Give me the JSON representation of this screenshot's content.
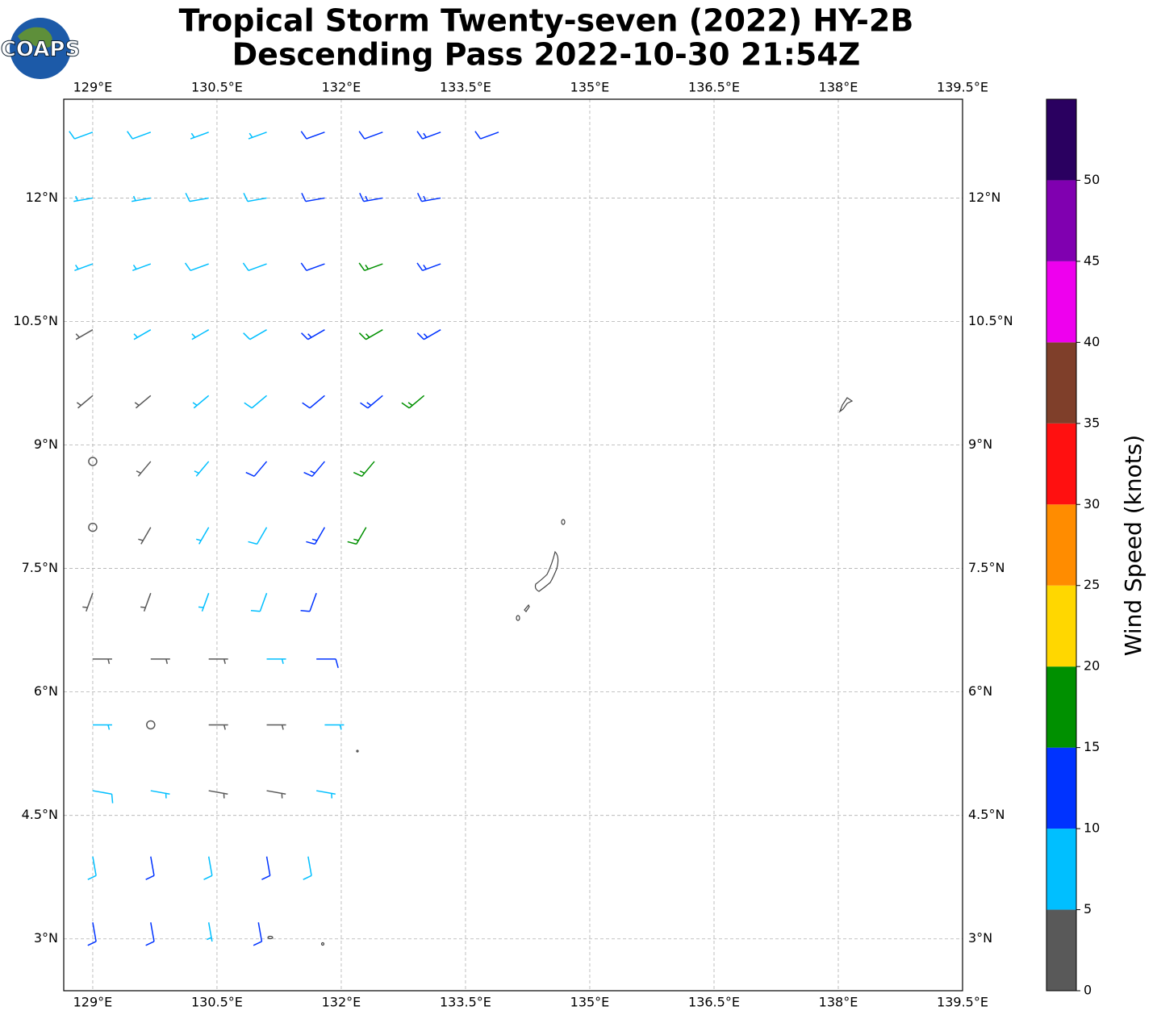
{
  "chart_data": {
    "type": "wind-barbs",
    "logo": "COAPS",
    "title": [
      "Tropical Storm Twenty-seven (2022) HY-2B",
      "Descending Pass 2022-10-30 21:54Z"
    ],
    "xlim": [
      128.65,
      139.5
    ],
    "ylim": [
      2.37,
      13.2
    ],
    "xticks": [
      {
        "value": 129,
        "label": "129°E"
      },
      {
        "value": 130.5,
        "label": "130.5°E"
      },
      {
        "value": 132,
        "label": "132°E"
      },
      {
        "value": 133.5,
        "label": "133.5°E"
      },
      {
        "value": 135,
        "label": "135°E"
      },
      {
        "value": 136.5,
        "label": "136.5°E"
      },
      {
        "value": 138,
        "label": "138°E"
      },
      {
        "value": 139.5,
        "label": "139.5°E"
      }
    ],
    "yticks": [
      {
        "value": 3,
        "label": "3°N"
      },
      {
        "value": 4.5,
        "label": "4.5°N"
      },
      {
        "value": 6,
        "label": "6°N"
      },
      {
        "value": 7.5,
        "label": "7.5°N"
      },
      {
        "value": 9,
        "label": "9°N"
      },
      {
        "value": 10.5,
        "label": "10.5°N"
      },
      {
        "value": 12,
        "label": "12°N"
      }
    ],
    "grid": true,
    "barbs": {
      "lon": [
        129,
        129.7,
        130.4,
        131.1,
        131.8,
        132.5,
        133.2,
        133.9,
        129,
        129.7,
        130.4,
        131.1,
        131.8,
        132.5,
        133.2,
        129,
        129.7,
        130.4,
        131.1,
        131.8,
        132.5,
        133.2,
        129,
        129.7,
        130.4,
        131.1,
        131.8,
        132.5,
        133.2,
        129,
        129.7,
        130.4,
        131.1,
        131.8,
        132.5,
        133,
        129,
        129.7,
        130.4,
        131.1,
        131.8,
        132.4,
        129,
        129.7,
        130.4,
        131.1,
        131.8,
        132.3,
        129,
        129.7,
        130.4,
        131.1,
        131.7,
        129,
        129.7,
        130.4,
        131.1,
        131.7,
        129,
        129.7,
        130.4,
        131.1,
        131.8,
        129,
        129.7,
        130.4,
        131.1,
        131.7,
        129,
        129.7,
        130.4,
        131.1,
        131.6,
        129,
        129.7,
        130.4,
        131
      ],
      "lat": [
        12.8,
        12.8,
        12.8,
        12.8,
        12.8,
        12.8,
        12.8,
        12.8,
        12,
        12,
        12,
        12,
        12,
        12,
        12,
        11.2,
        11.2,
        11.2,
        11.2,
        11.2,
        11.2,
        11.2,
        10.4,
        10.4,
        10.4,
        10.4,
        10.4,
        10.4,
        10.4,
        9.6,
        9.6,
        9.6,
        9.6,
        9.6,
        9.6,
        9.6,
        8.8,
        8.8,
        8.8,
        8.8,
        8.8,
        8.8,
        8,
        8,
        8,
        8,
        8,
        8,
        7.2,
        7.2,
        7.2,
        7.2,
        7.2,
        6.4,
        6.4,
        6.4,
        6.4,
        6.4,
        5.6,
        5.6,
        5.6,
        5.6,
        5.6,
        4.8,
        4.8,
        4.8,
        4.8,
        4.8,
        4,
        4,
        4,
        4,
        4,
        3.2,
        3.2,
        3.2,
        3.2
      ],
      "speed": [
        8,
        8,
        7,
        7,
        11,
        12,
        13,
        12,
        7,
        7,
        8,
        9,
        12,
        13,
        14,
        7,
        7,
        8,
        9,
        11,
        16,
        13,
        3,
        6,
        7,
        9,
        13,
        16,
        14,
        3,
        4,
        7,
        9,
        12,
        13,
        17,
        2,
        4,
        7,
        10,
        13,
        17,
        2,
        4,
        6,
        9,
        13,
        17,
        3,
        4,
        5,
        8,
        12,
        4,
        3,
        4,
        6,
        10,
        7,
        2,
        4,
        4,
        6,
        8,
        6,
        4,
        4,
        7,
        9,
        11,
        8,
        12,
        8,
        11,
        12,
        7,
        12
      ],
      "direction": [
        250,
        250,
        250,
        250,
        250,
        250,
        250,
        250,
        260,
        260,
        260,
        260,
        260,
        260,
        260,
        250,
        250,
        250,
        250,
        250,
        250,
        250,
        240,
        240,
        240,
        240,
        240,
        240,
        240,
        230,
        230,
        230,
        230,
        230,
        230,
        230,
        220,
        220,
        220,
        220,
        220,
        220,
        210,
        210,
        210,
        210,
        210,
        210,
        200,
        200,
        200,
        200,
        200,
        90,
        90,
        90,
        90,
        90,
        90,
        90,
        90,
        90,
        90,
        100,
        100,
        100,
        100,
        100,
        170,
        170,
        170,
        170,
        170,
        170,
        170,
        170,
        170
      ]
    },
    "colorbar": {
      "label": "Wind Speed (knots)",
      "levels": [
        0,
        5,
        10,
        15,
        20,
        25,
        30,
        35,
        40,
        45,
        50,
        55
      ],
      "colors": [
        "#595959",
        "#00bfff",
        "#0033ff",
        "#009000",
        "#ffd700",
        "#ff8c00",
        "#ff1010",
        "#7f3f2a",
        "#ee00ee",
        "#8000b0",
        "#2a0060"
      ],
      "ticks": [
        0,
        5,
        10,
        15,
        20,
        25,
        30,
        35,
        40,
        45,
        50
      ]
    }
  }
}
